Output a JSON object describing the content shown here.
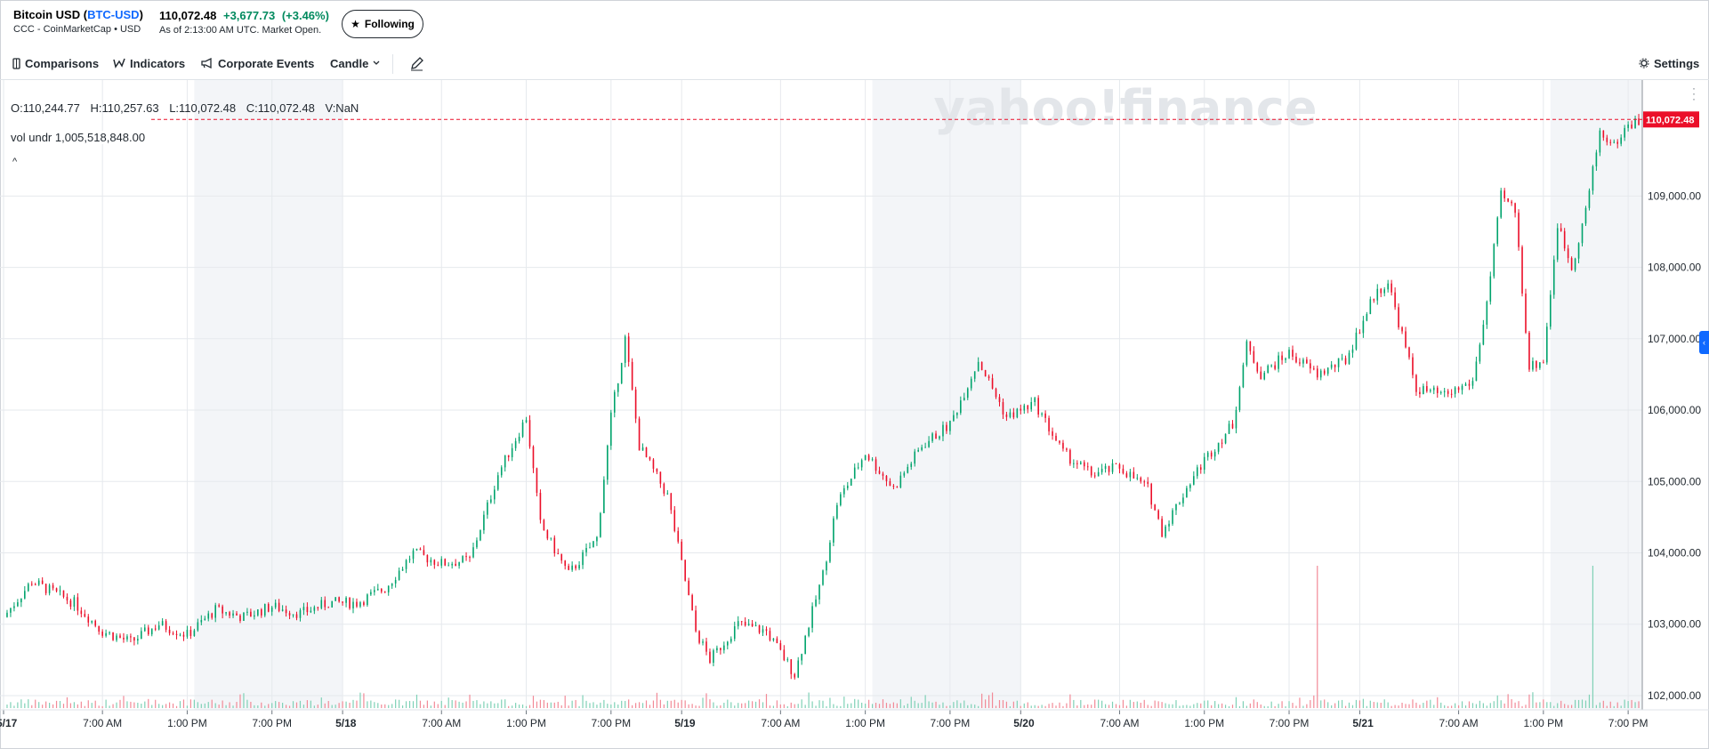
{
  "header": {
    "name": "Bitcoin USD",
    "symbol": "BTC-USD",
    "source": "CCC - CoinMarketCap • USD",
    "last_price": "110,072.48",
    "change": "+3,677.73",
    "change_pct": "(+3.46%)",
    "as_of": "As of 2:13:00 AM UTC. Market Open.",
    "follow_label": "Following"
  },
  "toolbar": {
    "comparisons": "Comparisons",
    "indicators": "Indicators",
    "corporate_events": "Corporate Events",
    "chart_type": "Candle",
    "settings": "Settings"
  },
  "legend": {
    "open": "O:110,244.77",
    "high": "H:110,257.63",
    "low": "L:110,072.48",
    "close": "C:110,072.48",
    "volume": "V:NaN",
    "vol_label": "vol undr",
    "vol_value": "1,005,518,848.00"
  },
  "watermark": "yahoo!finance",
  "colors": {
    "up": "#00a36c",
    "down": "#eb0f29",
    "weekend_shade": "#f3f5f8",
    "price_tag": "#eb0f29",
    "accent": "#0f69ff"
  },
  "chart_data": {
    "type": "candlestick",
    "title": "Bitcoin USD (BTC-USD)",
    "ylim": [
      101800,
      110500
    ],
    "yticks": [
      102000,
      103000,
      104000,
      105000,
      106000,
      107000,
      108000,
      109000
    ],
    "ytick_labels": [
      "102,000.00",
      "103,000.00",
      "104,000.00",
      "105,000.00",
      "106,000.00",
      "107,000.00",
      "108,000.00",
      "109,000.00"
    ],
    "xlim_hours": [
      0,
      116
    ],
    "xtick_hours": [
      0,
      7,
      13,
      19,
      24,
      31,
      37,
      43,
      48,
      55,
      61,
      67,
      72,
      79,
      85,
      91,
      96,
      103,
      109,
      115
    ],
    "xtick_labels": [
      "5/17",
      "7:00 AM",
      "1:00 PM",
      "7:00 PM",
      "5/18",
      "7:00 AM",
      "1:00 PM",
      "7:00 PM",
      "5/19",
      "7:00 AM",
      "1:00 PM",
      "7:00 PM",
      "5/20",
      "7:00 AM",
      "1:00 PM",
      "7:00 PM",
      "5/21",
      "7:00 AM",
      "1:00 PM",
      "7:00 PM"
    ],
    "current_price": 110072.48,
    "current_price_label": "110,072.48",
    "price_path": [
      [
        0,
        103100
      ],
      [
        2,
        103600
      ],
      [
        5,
        103300
      ],
      [
        7,
        102900
      ],
      [
        9,
        102750
      ],
      [
        11,
        103000
      ],
      [
        13,
        102850
      ],
      [
        15,
        103200
      ],
      [
        17,
        103100
      ],
      [
        19,
        103250
      ],
      [
        21,
        103150
      ],
      [
        23,
        103300
      ],
      [
        25,
        103300
      ],
      [
        27,
        103500
      ],
      [
        29,
        104000
      ],
      [
        31,
        103850
      ],
      [
        33,
        103900
      ],
      [
        35,
        105100
      ],
      [
        37,
        105900
      ],
      [
        38,
        104400
      ],
      [
        40,
        103700
      ],
      [
        42,
        104200
      ],
      [
        43,
        105900
      ],
      [
        44,
        107000
      ],
      [
        45,
        105500
      ],
      [
        47,
        104800
      ],
      [
        49,
        102900
      ],
      [
        50,
        102500
      ],
      [
        52,
        103000
      ],
      [
        54,
        102900
      ],
      [
        56,
        102300
      ],
      [
        58,
        103700
      ],
      [
        59,
        104700
      ],
      [
        61,
        105400
      ],
      [
        63,
        104900
      ],
      [
        65,
        105500
      ],
      [
        67,
        105800
      ],
      [
        69,
        106700
      ],
      [
        71,
        105900
      ],
      [
        73,
        106100
      ],
      [
        75,
        105400
      ],
      [
        77,
        105100
      ],
      [
        79,
        105200
      ],
      [
        81,
        104900
      ],
      [
        82,
        104300
      ],
      [
        84,
        105000
      ],
      [
        85,
        105300
      ],
      [
        87,
        105800
      ],
      [
        88,
        106900
      ],
      [
        89,
        106500
      ],
      [
        91,
        106800
      ],
      [
        93,
        106500
      ],
      [
        95,
        106700
      ],
      [
        97,
        107600
      ],
      [
        98,
        107800
      ],
      [
        100,
        106300
      ],
      [
        102,
        106200
      ],
      [
        104,
        106400
      ],
      [
        105,
        107500
      ],
      [
        106,
        109000
      ],
      [
        107,
        108800
      ],
      [
        108,
        106600
      ],
      [
        109,
        106700
      ],
      [
        110,
        108600
      ],
      [
        111,
        108000
      ],
      [
        112,
        108800
      ],
      [
        113,
        109900
      ],
      [
        114,
        109700
      ],
      [
        115,
        110000
      ],
      [
        116,
        110072
      ]
    ],
    "weekend_shade_hours": [
      [
        0,
        24
      ],
      [
        48,
        72
      ],
      [
        96,
        116
      ]
    ],
    "volume_spikes_hours": [
      93,
      112.5
    ]
  }
}
